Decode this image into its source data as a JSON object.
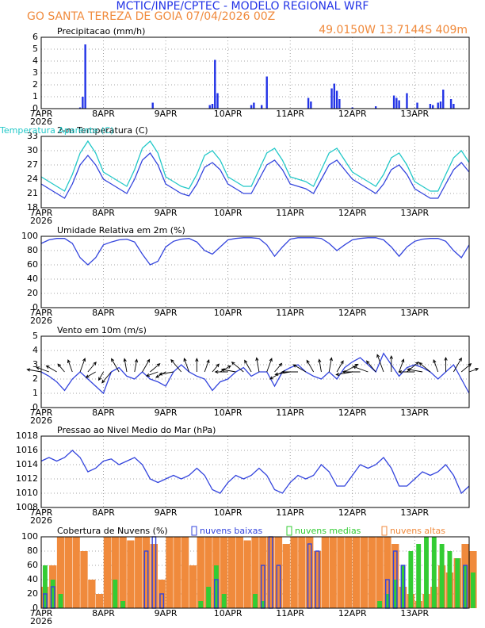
{
  "header": {
    "title": "MCTIC/INPE/CPTEC - MODELO REGIONAL WRF",
    "subtitle": "GO SANTA TEREZA DE GOIA   07/04/2026 00Z",
    "location": "49.0150W 13.7144S 409m"
  },
  "chart_data": [
    {
      "type": "bar",
      "title": "Precipitacao (mm/h)",
      "color": "#2233e6",
      "grid": true,
      "xlim": [
        0,
        165
      ],
      "xticks": [
        {
          "value": 0,
          "label": "7APR"
        },
        {
          "value": 24,
          "label": "8APR"
        },
        {
          "value": 48,
          "label": "9APR"
        },
        {
          "value": 72,
          "label": "10APR"
        },
        {
          "value": 96,
          "label": "11APR"
        },
        {
          "value": 120,
          "label": "12APR"
        },
        {
          "value": 144,
          "label": "13APR"
        }
      ],
      "year": "2026",
      "ylim": [
        0,
        6
      ],
      "yticks": [
        0,
        1,
        2,
        3,
        4,
        5,
        6
      ],
      "x": [
        15,
        16,
        17,
        43,
        65,
        66,
        67,
        68,
        81,
        82,
        85,
        87,
        103,
        104,
        112,
        113,
        114,
        115,
        120,
        129,
        136,
        137,
        138,
        141,
        145,
        150,
        151,
        153,
        154,
        155,
        158,
        159
      ],
      "values": [
        0.1,
        1.0,
        5.4,
        0.5,
        0.3,
        0.4,
        4.1,
        1.3,
        0.3,
        0.5,
        0.3,
        2.7,
        0.9,
        0.6,
        1.7,
        2.1,
        1.5,
        0.8,
        0.1,
        0.2,
        1.1,
        0.9,
        0.7,
        1.3,
        0.5,
        0.4,
        0.3,
        0.5,
        0.6,
        1.6,
        0.8,
        0.4
      ]
    },
    {
      "type": "line",
      "title": "2-m Temperatura (C)",
      "grid": true,
      "xlim": [
        0,
        165
      ],
      "xticks": [
        {
          "value": 0,
          "label": "7APR"
        },
        {
          "value": 24,
          "label": "8APR"
        },
        {
          "value": 48,
          "label": "9APR"
        },
        {
          "value": 72,
          "label": "10APR"
        },
        {
          "value": 96,
          "label": "11APR"
        },
        {
          "value": 120,
          "label": "12APR"
        },
        {
          "value": 144,
          "label": "13APR"
        }
      ],
      "year": "2026",
      "ylim": [
        18,
        33
      ],
      "yticks": [
        18,
        21,
        24,
        27,
        30,
        33
      ],
      "x": [
        0,
        3,
        6,
        9,
        12,
        15,
        18,
        21,
        24,
        27,
        30,
        33,
        36,
        39,
        42,
        45,
        48,
        51,
        54,
        57,
        60,
        63,
        66,
        69,
        72,
        75,
        78,
        81,
        84,
        87,
        90,
        93,
        96,
        99,
        102,
        105,
        108,
        111,
        114,
        117,
        120,
        123,
        126,
        129,
        132,
        135,
        138,
        141,
        144,
        147,
        150,
        153,
        156,
        159,
        162,
        165
      ],
      "series": [
        {
          "color": "#3344dd",
          "values": [
            23,
            22,
            21,
            20,
            23,
            27,
            29,
            27,
            24,
            23,
            22,
            21,
            24,
            28,
            29.5,
            27,
            23,
            22,
            21,
            20.5,
            23,
            26.5,
            27.5,
            26,
            23,
            22,
            21,
            21,
            24,
            27,
            28,
            26,
            23,
            22.5,
            22,
            21,
            24,
            27,
            28,
            26,
            24,
            23,
            22,
            21,
            23,
            26,
            27,
            25,
            22,
            21,
            20,
            20,
            23,
            26,
            27.5,
            25.5
          ]
        },
        {
          "name": "Temperatura Aparente (C)",
          "color": "#22c8c8",
          "values": [
            24.5,
            23.5,
            22.5,
            21.5,
            25,
            29.5,
            32,
            29.5,
            25.5,
            24.5,
            23.5,
            22.5,
            26,
            30.5,
            32,
            29.5,
            24.5,
            23.5,
            22.5,
            22,
            25,
            29,
            30,
            28,
            24.5,
            23.5,
            22.5,
            22.5,
            26,
            29.5,
            30.5,
            28,
            24.5,
            24,
            23.5,
            22.5,
            26,
            29.5,
            30.5,
            28,
            25.5,
            24.5,
            23.5,
            22.5,
            25,
            28.5,
            29.5,
            27,
            23.5,
            22.5,
            21.5,
            21.5,
            25,
            28.5,
            30,
            27.5
          ]
        }
      ]
    },
    {
      "type": "line",
      "title": "Umidade Relativa em 2m (%)",
      "color": "#3344dd",
      "grid": true,
      "xlim": [
        0,
        165
      ],
      "xticks": [
        {
          "value": 0,
          "label": "7APR"
        },
        {
          "value": 24,
          "label": "8APR"
        },
        {
          "value": 48,
          "label": "9APR"
        },
        {
          "value": 72,
          "label": "10APR"
        },
        {
          "value": 96,
          "label": "11APR"
        },
        {
          "value": 120,
          "label": "12APR"
        },
        {
          "value": 144,
          "label": "13APR"
        }
      ],
      "year": "2026",
      "ylim": [
        0,
        100
      ],
      "yticks": [
        0,
        20,
        40,
        60,
        80,
        100
      ],
      "x": [
        0,
        3,
        6,
        9,
        12,
        15,
        18,
        21,
        24,
        27,
        30,
        33,
        36,
        39,
        42,
        45,
        48,
        51,
        54,
        57,
        60,
        63,
        66,
        69,
        72,
        75,
        78,
        81,
        84,
        87,
        90,
        93,
        96,
        99,
        102,
        105,
        108,
        111,
        114,
        117,
        120,
        123,
        126,
        129,
        132,
        135,
        138,
        141,
        144,
        147,
        150,
        153,
        156,
        159,
        162,
        165
      ],
      "values": [
        90,
        95,
        97,
        97,
        90,
        70,
        60,
        70,
        88,
        92,
        95,
        96,
        92,
        75,
        60,
        65,
        85,
        93,
        96,
        97,
        92,
        80,
        75,
        85,
        95,
        97,
        98,
        98,
        97,
        88,
        72,
        85,
        96,
        98,
        98,
        98,
        97,
        90,
        80,
        88,
        95,
        97,
        98,
        98,
        95,
        85,
        72,
        85,
        93,
        96,
        97,
        97,
        93,
        80,
        70,
        88
      ]
    },
    {
      "type": "line",
      "title": "Vento em 10m (m/s)",
      "color": "#3344dd",
      "grid": true,
      "xlim": [
        0,
        165
      ],
      "xticks": [
        {
          "value": 0,
          "label": "7APR"
        },
        {
          "value": 24,
          "label": "8APR"
        },
        {
          "value": 48,
          "label": "9APR"
        },
        {
          "value": 72,
          "label": "10APR"
        },
        {
          "value": 96,
          "label": "11APR"
        },
        {
          "value": 120,
          "label": "12APR"
        },
        {
          "value": 144,
          "label": "13APR"
        }
      ],
      "year": "2026",
      "ylim": [
        0,
        5
      ],
      "yticks": [
        0,
        1,
        2,
        3,
        4,
        5
      ],
      "x": [
        0,
        3,
        6,
        9,
        12,
        15,
        18,
        21,
        24,
        27,
        30,
        33,
        36,
        39,
        42,
        45,
        48,
        51,
        54,
        57,
        60,
        63,
        66,
        69,
        72,
        75,
        78,
        81,
        84,
        87,
        90,
        93,
        96,
        99,
        102,
        105,
        108,
        111,
        114,
        117,
        120,
        123,
        126,
        129,
        132,
        135,
        138,
        141,
        144,
        147,
        150,
        153,
        156,
        159,
        162,
        165
      ],
      "values": [
        2.5,
        2.2,
        1.8,
        1.2,
        2.0,
        2.5,
        2.0,
        1.5,
        1.0,
        2.5,
        2.8,
        2.2,
        2.0,
        2.5,
        2.0,
        1.8,
        1.5,
        2.5,
        3.0,
        2.5,
        2.2,
        2.0,
        1.2,
        1.8,
        2.0,
        2.5,
        2.8,
        2.2,
        2.5,
        2.5,
        1.5,
        2.5,
        2.8,
        3.0,
        2.5,
        2.2,
        2.0,
        2.5,
        2.0,
        2.8,
        3.2,
        3.5,
        3.0,
        2.5,
        3.8,
        3.0,
        2.2,
        2.8,
        3.0,
        2.8,
        2.5,
        2.0,
        2.5,
        3.0,
        2.0,
        1.0
      ],
      "directions": [
        100,
        110,
        120,
        140,
        160,
        200,
        220,
        60,
        30,
        40,
        150,
        170,
        190,
        210,
        230,
        70,
        60,
        80,
        140,
        160,
        180,
        200,
        220,
        240,
        90,
        100,
        130,
        150,
        170,
        200,
        220,
        60,
        80,
        90,
        120,
        150,
        170,
        190,
        210,
        240,
        80,
        90,
        110,
        140,
        160,
        180,
        200,
        230,
        90,
        100,
        130,
        160,
        180,
        210,
        230,
        250
      ]
    },
    {
      "type": "line",
      "title": "Pressao ao Nivel Medio do Mar (hPa)",
      "color": "#3344dd",
      "grid": true,
      "xlim": [
        0,
        165
      ],
      "xticks": [
        {
          "value": 0,
          "label": "7APR"
        },
        {
          "value": 24,
          "label": "8APR"
        },
        {
          "value": 48,
          "label": "9APR"
        },
        {
          "value": 72,
          "label": "10APR"
        },
        {
          "value": 96,
          "label": "11APR"
        },
        {
          "value": 120,
          "label": "12APR"
        },
        {
          "value": 144,
          "label": "13APR"
        }
      ],
      "year": "2026",
      "ylim": [
        1008,
        1018
      ],
      "yticks": [
        1008,
        1010,
        1012,
        1014,
        1016,
        1018
      ],
      "x": [
        0,
        3,
        6,
        9,
        12,
        15,
        18,
        21,
        24,
        27,
        30,
        33,
        36,
        39,
        42,
        45,
        48,
        51,
        54,
        57,
        60,
        63,
        66,
        69,
        72,
        75,
        78,
        81,
        84,
        87,
        90,
        93,
        96,
        99,
        102,
        105,
        108,
        111,
        114,
        117,
        120,
        123,
        126,
        129,
        132,
        135,
        138,
        141,
        144,
        147,
        150,
        153,
        156,
        159,
        162,
        165
      ],
      "values": [
        1014.5,
        1015,
        1014.5,
        1015,
        1016,
        1015,
        1013,
        1013.5,
        1014.5,
        1014.8,
        1014,
        1014.5,
        1015,
        1014,
        1012,
        1011.5,
        1012,
        1012.5,
        1012,
        1012.5,
        1013.5,
        1012.5,
        1010.5,
        1010,
        1011.5,
        1012.5,
        1012,
        1012.5,
        1013.5,
        1012.5,
        1010.5,
        1010,
        1011.5,
        1012.5,
        1012,
        1012.5,
        1014,
        1013,
        1011,
        1011,
        1012.5,
        1014,
        1013.5,
        1014,
        1015,
        1013.5,
        1011,
        1011,
        1012,
        1013,
        1012.5,
        1013,
        1014,
        1012.5,
        1010,
        1011
      ]
    },
    {
      "type": "bar",
      "title": "Cobertura de Nuvens (%)",
      "grid": true,
      "xlim": [
        0,
        165
      ],
      "xticks": [
        {
          "value": 0,
          "label": "7APR"
        },
        {
          "value": 24,
          "label": "8APR"
        },
        {
          "value": 48,
          "label": "9APR"
        },
        {
          "value": 72,
          "label": "10APR"
        },
        {
          "value": 96,
          "label": "11APR"
        },
        {
          "value": 120,
          "label": "12APR"
        },
        {
          "value": 144,
          "label": "13APR"
        }
      ],
      "year": "2026",
      "ylim": [
        0,
        100
      ],
      "yticks": [
        0,
        20,
        40,
        60,
        80,
        100
      ],
      "x": [
        0,
        3,
        6,
        9,
        12,
        15,
        18,
        21,
        24,
        27,
        30,
        33,
        36,
        39,
        42,
        45,
        48,
        51,
        54,
        57,
        60,
        63,
        66,
        69,
        72,
        75,
        78,
        81,
        84,
        87,
        90,
        93,
        96,
        99,
        102,
        105,
        108,
        111,
        114,
        117,
        120,
        123,
        126,
        129,
        132,
        135,
        138,
        141,
        144,
        147,
        150,
        153,
        156,
        159,
        162,
        165
      ],
      "series": [
        {
          "name": "nuvens altas",
          "color": "#f08a3c",
          "filled": true,
          "values": [
            30,
            60,
            100,
            100,
            100,
            80,
            40,
            20,
            100,
            100,
            100,
            95,
            100,
            100,
            90,
            40,
            100,
            100,
            100,
            60,
            100,
            100,
            100,
            100,
            100,
            100,
            95,
            100,
            100,
            100,
            100,
            90,
            100,
            100,
            100,
            80,
            100,
            100,
            100,
            100,
            100,
            100,
            100,
            100,
            100,
            90,
            30,
            20,
            10,
            20,
            30,
            60,
            50,
            70,
            90,
            80
          ]
        },
        {
          "name": "nuvens medias",
          "color": "#33cc33",
          "filled": true,
          "values": [
            60,
            40,
            20,
            0,
            0,
            0,
            0,
            0,
            0,
            40,
            10,
            0,
            0,
            0,
            0,
            0,
            0,
            0,
            0,
            0,
            10,
            30,
            60,
            20,
            0,
            0,
            0,
            20,
            10,
            0,
            0,
            0,
            0,
            0,
            0,
            0,
            0,
            0,
            0,
            0,
            0,
            0,
            0,
            10,
            20,
            40,
            60,
            80,
            90,
            100,
            100,
            90,
            80,
            70,
            60,
            50
          ]
        },
        {
          "name": "nuvens baixas",
          "color": "#3344dd",
          "filled": false,
          "values": [
            20,
            30,
            0,
            0,
            0,
            0,
            0,
            0,
            0,
            0,
            0,
            0,
            0,
            80,
            100,
            20,
            0,
            0,
            0,
            0,
            0,
            0,
            40,
            0,
            0,
            0,
            0,
            0,
            60,
            100,
            60,
            0,
            0,
            0,
            90,
            80,
            0,
            0,
            0,
            0,
            0,
            0,
            0,
            0,
            40,
            80,
            60,
            0,
            0,
            0,
            0,
            0,
            0,
            0,
            60,
            0
          ]
        }
      ]
    }
  ]
}
